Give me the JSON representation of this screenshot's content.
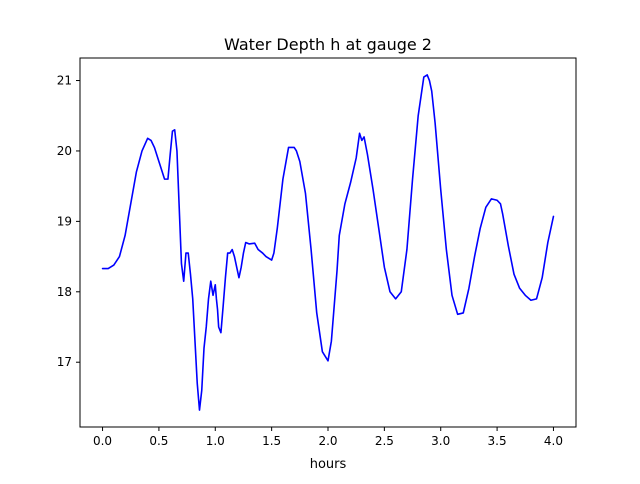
{
  "chart_data": {
    "type": "line",
    "title": "Water Depth h at gauge 2",
    "xlabel": "hours",
    "ylabel": "",
    "xlim": [
      -0.2,
      4.2
    ],
    "ylim": [
      16.08,
      21.32
    ],
    "grid": false,
    "legend": "none",
    "x_ticks": [
      0.0,
      0.5,
      1.0,
      1.5,
      2.0,
      2.5,
      3.0,
      3.5,
      4.0
    ],
    "x_tick_labels": [
      "0.0",
      "0.5",
      "1.0",
      "1.5",
      "2.0",
      "2.5",
      "3.0",
      "3.5",
      "4.0"
    ],
    "y_ticks": [
      17,
      18,
      19,
      20,
      21
    ],
    "y_tick_labels": [
      "17",
      "18",
      "19",
      "20",
      "21"
    ],
    "series": [
      {
        "color": "#0000ff",
        "x": [
          0.0,
          0.05,
          0.1,
          0.15,
          0.2,
          0.25,
          0.3,
          0.35,
          0.4,
          0.43,
          0.46,
          0.5,
          0.55,
          0.58,
          0.6,
          0.62,
          0.64,
          0.66,
          0.68,
          0.7,
          0.72,
          0.74,
          0.76,
          0.78,
          0.8,
          0.82,
          0.84,
          0.86,
          0.88,
          0.9,
          0.92,
          0.94,
          0.96,
          0.98,
          1.0,
          1.01,
          1.02,
          1.03,
          1.05,
          1.07,
          1.09,
          1.11,
          1.13,
          1.15,
          1.17,
          1.19,
          1.21,
          1.23,
          1.25,
          1.27,
          1.3,
          1.35,
          1.38,
          1.42,
          1.45,
          1.5,
          1.52,
          1.55,
          1.6,
          1.65,
          1.7,
          1.72,
          1.75,
          1.8,
          1.85,
          1.9,
          1.95,
          2.0,
          2.03,
          2.05,
          2.08,
          2.1,
          2.15,
          2.2,
          2.25,
          2.28,
          2.3,
          2.32,
          2.35,
          2.4,
          2.45,
          2.5,
          2.55,
          2.6,
          2.65,
          2.7,
          2.75,
          2.8,
          2.85,
          2.88,
          2.9,
          2.92,
          2.95,
          3.0,
          3.05,
          3.1,
          3.15,
          3.2,
          3.25,
          3.3,
          3.35,
          3.4,
          3.45,
          3.5,
          3.53,
          3.55,
          3.6,
          3.65,
          3.7,
          3.75,
          3.8,
          3.85,
          3.9,
          3.95,
          4.0
        ],
        "y": [
          18.33,
          18.33,
          18.38,
          18.5,
          18.8,
          19.25,
          19.7,
          20.0,
          20.18,
          20.15,
          20.05,
          19.85,
          19.6,
          19.6,
          19.95,
          20.28,
          20.3,
          20.0,
          19.2,
          18.4,
          18.15,
          18.55,
          18.55,
          18.25,
          17.9,
          17.3,
          16.7,
          16.32,
          16.6,
          17.2,
          17.5,
          17.9,
          18.15,
          17.95,
          18.1,
          17.9,
          17.75,
          17.5,
          17.42,
          17.8,
          18.2,
          18.55,
          18.55,
          18.6,
          18.5,
          18.35,
          18.2,
          18.35,
          18.55,
          18.7,
          18.68,
          18.69,
          18.6,
          18.55,
          18.5,
          18.45,
          18.55,
          18.9,
          19.6,
          20.05,
          20.05,
          20.0,
          19.85,
          19.4,
          18.6,
          17.7,
          17.15,
          17.02,
          17.3,
          17.7,
          18.3,
          18.8,
          19.25,
          19.55,
          19.9,
          20.25,
          20.15,
          20.2,
          19.95,
          19.45,
          18.9,
          18.35,
          18.0,
          17.9,
          18.0,
          18.6,
          19.6,
          20.5,
          21.05,
          21.08,
          21.0,
          20.85,
          20.4,
          19.45,
          18.6,
          17.95,
          17.68,
          17.7,
          18.05,
          18.5,
          18.9,
          19.2,
          19.32,
          19.3,
          19.25,
          19.1,
          18.65,
          18.25,
          18.05,
          17.95,
          17.88,
          17.9,
          18.2,
          18.7,
          19.07
        ]
      }
    ]
  }
}
